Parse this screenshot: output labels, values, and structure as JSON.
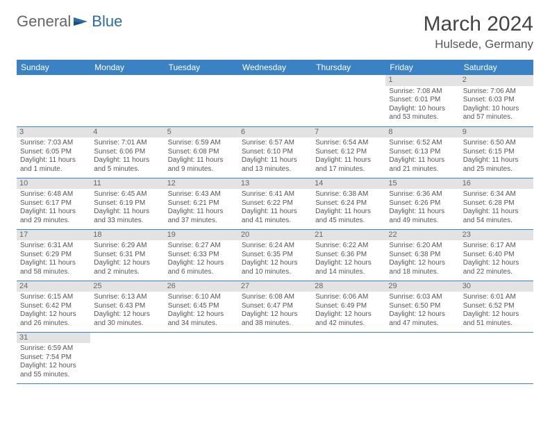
{
  "logo": {
    "general": "General",
    "blue": "Blue"
  },
  "title": "March 2024",
  "location": "Hulsede, Germany",
  "colors": {
    "header_bg": "#3b82c4",
    "header_fg": "#ffffff",
    "daynum_bg": "#e3e3e3",
    "border": "#3b82c4"
  },
  "daysOfWeek": [
    "Sunday",
    "Monday",
    "Tuesday",
    "Wednesday",
    "Thursday",
    "Friday",
    "Saturday"
  ],
  "weeks": [
    [
      null,
      null,
      null,
      null,
      null,
      {
        "n": "1",
        "sr": "Sunrise: 7:08 AM",
        "ss": "Sunset: 6:01 PM",
        "dl": "Daylight: 10 hours and 53 minutes."
      },
      {
        "n": "2",
        "sr": "Sunrise: 7:06 AM",
        "ss": "Sunset: 6:03 PM",
        "dl": "Daylight: 10 hours and 57 minutes."
      }
    ],
    [
      {
        "n": "3",
        "sr": "Sunrise: 7:03 AM",
        "ss": "Sunset: 6:05 PM",
        "dl": "Daylight: 11 hours and 1 minute."
      },
      {
        "n": "4",
        "sr": "Sunrise: 7:01 AM",
        "ss": "Sunset: 6:06 PM",
        "dl": "Daylight: 11 hours and 5 minutes."
      },
      {
        "n": "5",
        "sr": "Sunrise: 6:59 AM",
        "ss": "Sunset: 6:08 PM",
        "dl": "Daylight: 11 hours and 9 minutes."
      },
      {
        "n": "6",
        "sr": "Sunrise: 6:57 AM",
        "ss": "Sunset: 6:10 PM",
        "dl": "Daylight: 11 hours and 13 minutes."
      },
      {
        "n": "7",
        "sr": "Sunrise: 6:54 AM",
        "ss": "Sunset: 6:12 PM",
        "dl": "Daylight: 11 hours and 17 minutes."
      },
      {
        "n": "8",
        "sr": "Sunrise: 6:52 AM",
        "ss": "Sunset: 6:13 PM",
        "dl": "Daylight: 11 hours and 21 minutes."
      },
      {
        "n": "9",
        "sr": "Sunrise: 6:50 AM",
        "ss": "Sunset: 6:15 PM",
        "dl": "Daylight: 11 hours and 25 minutes."
      }
    ],
    [
      {
        "n": "10",
        "sr": "Sunrise: 6:48 AM",
        "ss": "Sunset: 6:17 PM",
        "dl": "Daylight: 11 hours and 29 minutes."
      },
      {
        "n": "11",
        "sr": "Sunrise: 6:45 AM",
        "ss": "Sunset: 6:19 PM",
        "dl": "Daylight: 11 hours and 33 minutes."
      },
      {
        "n": "12",
        "sr": "Sunrise: 6:43 AM",
        "ss": "Sunset: 6:21 PM",
        "dl": "Daylight: 11 hours and 37 minutes."
      },
      {
        "n": "13",
        "sr": "Sunrise: 6:41 AM",
        "ss": "Sunset: 6:22 PM",
        "dl": "Daylight: 11 hours and 41 minutes."
      },
      {
        "n": "14",
        "sr": "Sunrise: 6:38 AM",
        "ss": "Sunset: 6:24 PM",
        "dl": "Daylight: 11 hours and 45 minutes."
      },
      {
        "n": "15",
        "sr": "Sunrise: 6:36 AM",
        "ss": "Sunset: 6:26 PM",
        "dl": "Daylight: 11 hours and 49 minutes."
      },
      {
        "n": "16",
        "sr": "Sunrise: 6:34 AM",
        "ss": "Sunset: 6:28 PM",
        "dl": "Daylight: 11 hours and 54 minutes."
      }
    ],
    [
      {
        "n": "17",
        "sr": "Sunrise: 6:31 AM",
        "ss": "Sunset: 6:29 PM",
        "dl": "Daylight: 11 hours and 58 minutes."
      },
      {
        "n": "18",
        "sr": "Sunrise: 6:29 AM",
        "ss": "Sunset: 6:31 PM",
        "dl": "Daylight: 12 hours and 2 minutes."
      },
      {
        "n": "19",
        "sr": "Sunrise: 6:27 AM",
        "ss": "Sunset: 6:33 PM",
        "dl": "Daylight: 12 hours and 6 minutes."
      },
      {
        "n": "20",
        "sr": "Sunrise: 6:24 AM",
        "ss": "Sunset: 6:35 PM",
        "dl": "Daylight: 12 hours and 10 minutes."
      },
      {
        "n": "21",
        "sr": "Sunrise: 6:22 AM",
        "ss": "Sunset: 6:36 PM",
        "dl": "Daylight: 12 hours and 14 minutes."
      },
      {
        "n": "22",
        "sr": "Sunrise: 6:20 AM",
        "ss": "Sunset: 6:38 PM",
        "dl": "Daylight: 12 hours and 18 minutes."
      },
      {
        "n": "23",
        "sr": "Sunrise: 6:17 AM",
        "ss": "Sunset: 6:40 PM",
        "dl": "Daylight: 12 hours and 22 minutes."
      }
    ],
    [
      {
        "n": "24",
        "sr": "Sunrise: 6:15 AM",
        "ss": "Sunset: 6:42 PM",
        "dl": "Daylight: 12 hours and 26 minutes."
      },
      {
        "n": "25",
        "sr": "Sunrise: 6:13 AM",
        "ss": "Sunset: 6:43 PM",
        "dl": "Daylight: 12 hours and 30 minutes."
      },
      {
        "n": "26",
        "sr": "Sunrise: 6:10 AM",
        "ss": "Sunset: 6:45 PM",
        "dl": "Daylight: 12 hours and 34 minutes."
      },
      {
        "n": "27",
        "sr": "Sunrise: 6:08 AM",
        "ss": "Sunset: 6:47 PM",
        "dl": "Daylight: 12 hours and 38 minutes."
      },
      {
        "n": "28",
        "sr": "Sunrise: 6:06 AM",
        "ss": "Sunset: 6:49 PM",
        "dl": "Daylight: 12 hours and 42 minutes."
      },
      {
        "n": "29",
        "sr": "Sunrise: 6:03 AM",
        "ss": "Sunset: 6:50 PM",
        "dl": "Daylight: 12 hours and 47 minutes."
      },
      {
        "n": "30",
        "sr": "Sunrise: 6:01 AM",
        "ss": "Sunset: 6:52 PM",
        "dl": "Daylight: 12 hours and 51 minutes."
      }
    ],
    [
      {
        "n": "31",
        "sr": "Sunrise: 6:59 AM",
        "ss": "Sunset: 7:54 PM",
        "dl": "Daylight: 12 hours and 55 minutes."
      },
      null,
      null,
      null,
      null,
      null,
      null
    ]
  ]
}
